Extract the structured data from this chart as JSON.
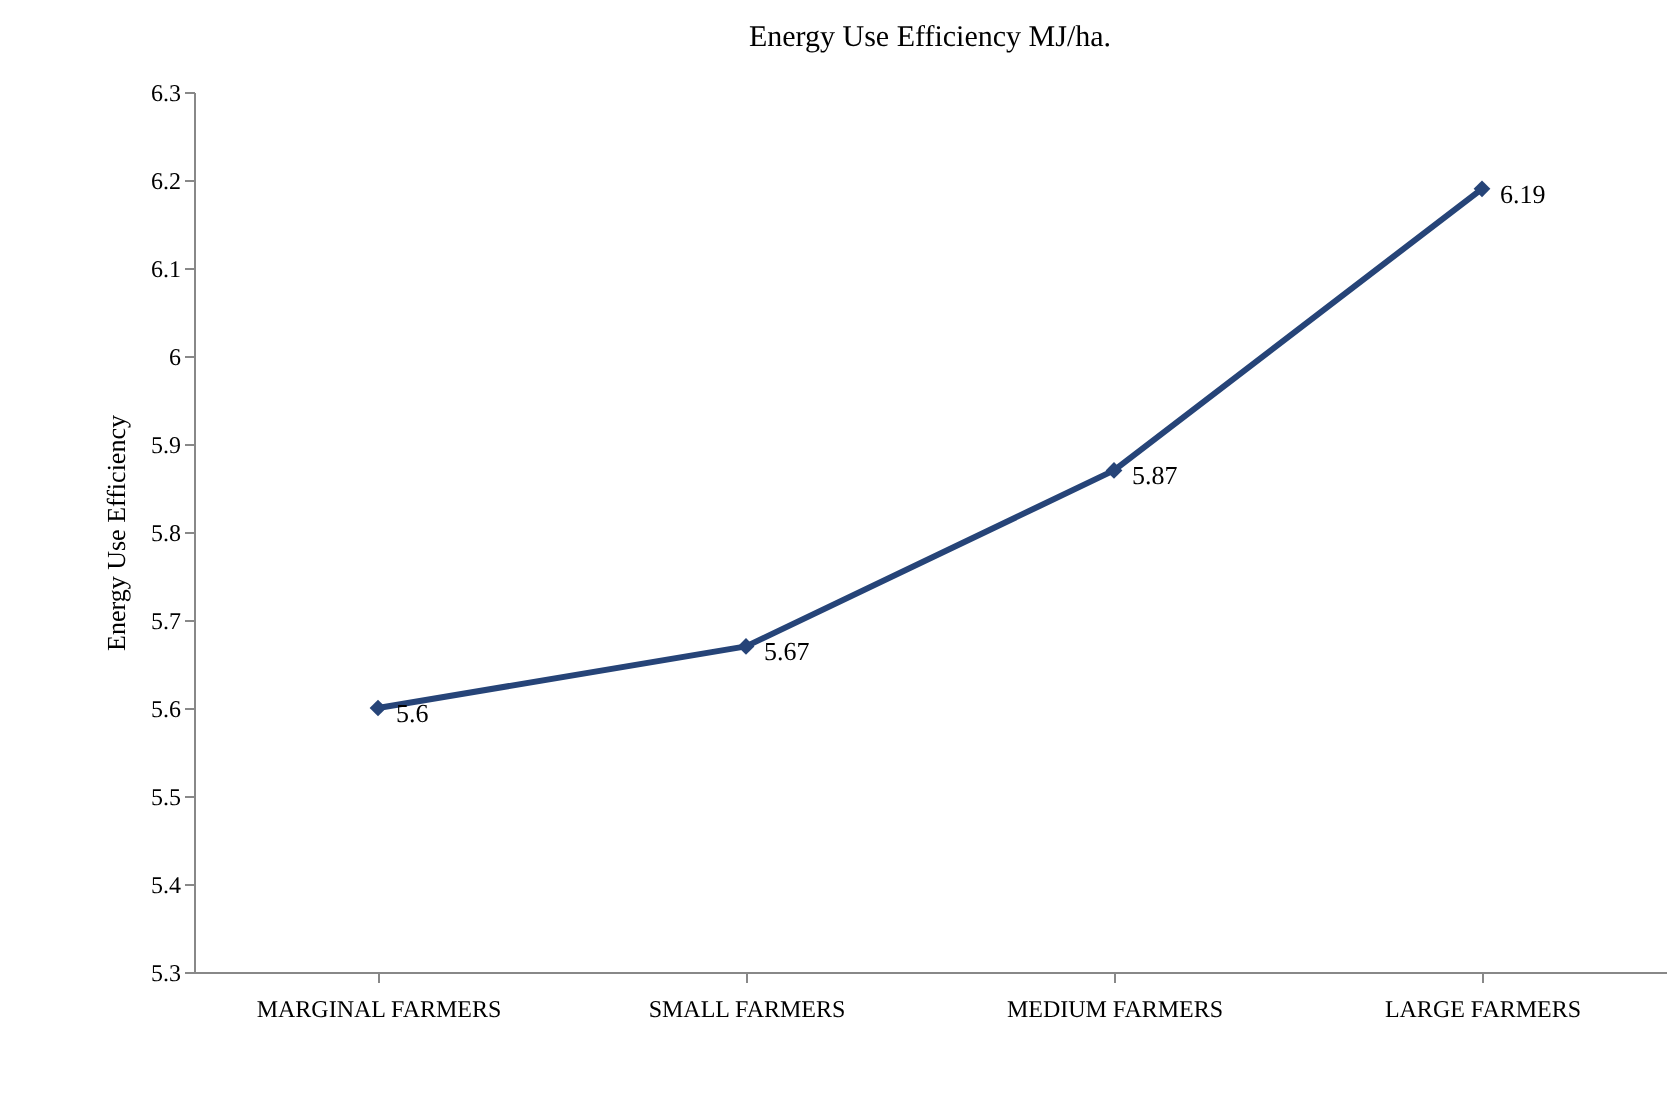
{
  "chart_data": {
    "type": "line",
    "title": "Energy Use Efficiency MJ/ha.",
    "ylabel": "Energy Use Efficiency",
    "categories": [
      "MARGINAL FARMERS",
      "SMALL FARMERS",
      "MEDIUM FARMERS",
      "LARGE FARMERS"
    ],
    "series": [
      {
        "color": "#264478",
        "values": [
          5.6,
          5.67,
          5.87,
          6.19
        ]
      }
    ],
    "ylim": [
      5.3,
      6.3
    ],
    "yticks": [
      5.3,
      5.4,
      5.5,
      5.6,
      5.7,
      5.8,
      5.9,
      6,
      6.1,
      6.2,
      6.3
    ],
    "marker": "diamond",
    "line_style": "solid",
    "data_labels": true,
    "grid": false,
    "legend": false
  }
}
